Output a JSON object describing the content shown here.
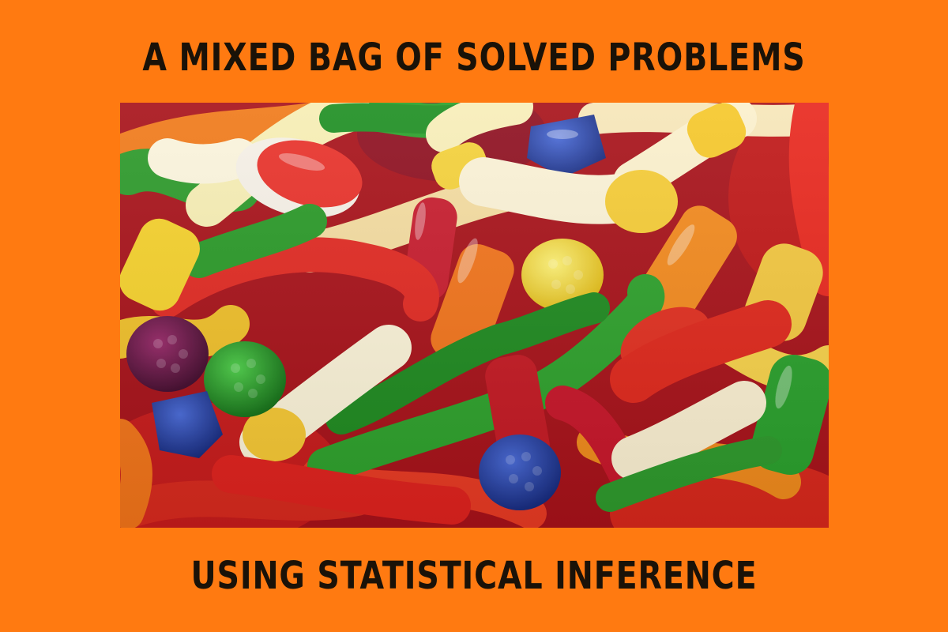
{
  "header": {
    "title": "A MIXED BAG OF SOLVED PROBLEMS"
  },
  "footer": {
    "subtitle": "USING STATISTICAL INFERENCE"
  },
  "colors": {
    "background": "#ff7a11",
    "text": "#1a1208"
  },
  "photo": {
    "subject": "candy"
  }
}
